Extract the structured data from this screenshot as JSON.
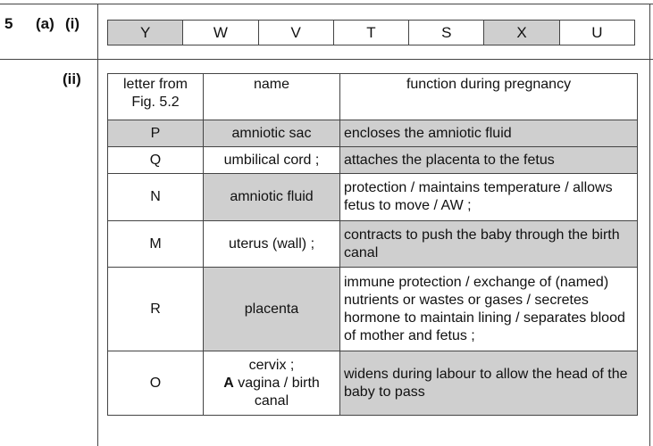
{
  "question": {
    "number": "5",
    "part_a": "(a)",
    "part_i": "(i)",
    "part_ii": "(ii)"
  },
  "letters_row": {
    "cells": [
      {
        "text": "Y",
        "shaded": true
      },
      {
        "text": "W",
        "shaded": false
      },
      {
        "text": "V",
        "shaded": false
      },
      {
        "text": "T",
        "shaded": false
      },
      {
        "text": "S",
        "shaded": false
      },
      {
        "text": "X",
        "shaded": true
      },
      {
        "text": "U",
        "shaded": false
      }
    ]
  },
  "table": {
    "headers": [
      "letter from Fig. 5.2",
      "name",
      "function during pregnancy"
    ],
    "rows": [
      {
        "letter": "P",
        "name": "amniotic sac",
        "name_bold_prefix": "",
        "function": "encloses the amniotic fluid"
      },
      {
        "letter": "Q",
        "name": "umbilical cord ;",
        "name_bold_prefix": "",
        "function": "attaches the placenta to the fetus"
      },
      {
        "letter": "N",
        "name": "amniotic fluid",
        "name_bold_prefix": "",
        "function": "protection / maintains temperature / allows fetus to move / AW ;"
      },
      {
        "letter": "M",
        "name": "uterus (wall) ;",
        "name_bold_prefix": "",
        "function": "contracts to push the baby through the birth canal"
      },
      {
        "letter": "R",
        "name": "placenta",
        "name_bold_prefix": "",
        "function": "immune protection / exchange of (named) nutrients or wastes or gases / secretes hormone to maintain lining / separates blood of mother and fetus ;"
      },
      {
        "letter": "O",
        "name": "vagina / birth canal",
        "name_line1": "cervix ;",
        "name_bold_prefix": "A",
        "function": "widens during labour to allow the head of the baby to pass"
      }
    ]
  }
}
